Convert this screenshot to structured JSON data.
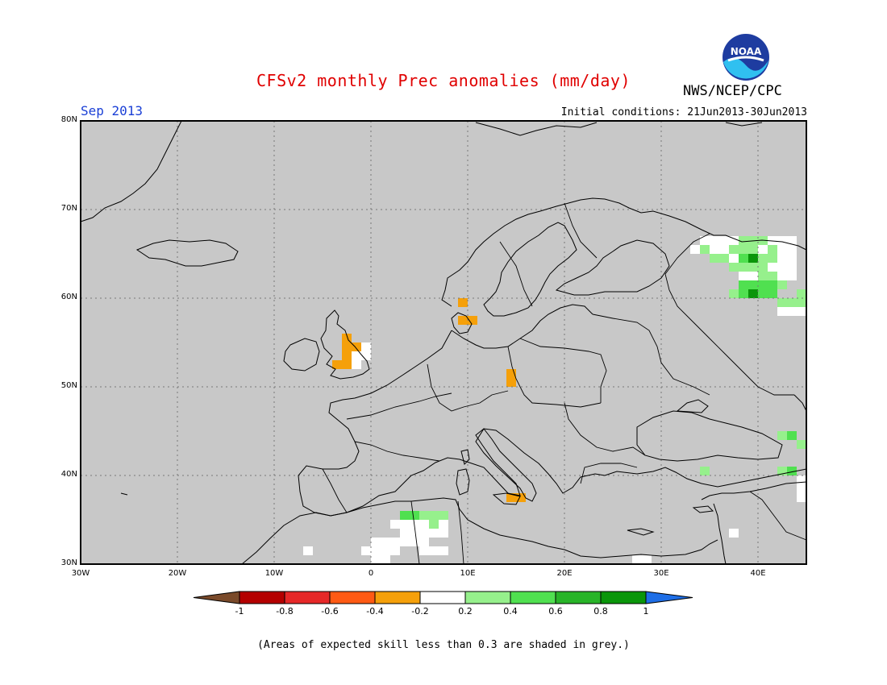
{
  "title": "CFSv2 monthly Prec anomalies (mm/day)",
  "month": "Sep 2013",
  "agency": "NWS/NCEP/CPC",
  "logo_text": "NOAA",
  "initial_conditions": "Initial conditions: 21Jun2013-30Jun2013",
  "footnote": "(Areas of expected skill less than 0.3 are shaded in grey.)",
  "colors": {
    "title": "#e00000",
    "month": "#1a3fd6",
    "ocean_grey": "#c8c8c8",
    "coast": "#000000",
    "grid": "#777777",
    "white": "#ffffff",
    "light_green": "#96f08c",
    "green": "#50e050",
    "mid_green": "#28b428",
    "dark_green": "#0a960a",
    "orange": "#f5a00a"
  },
  "map": {
    "lon_range": [
      -30,
      45
    ],
    "lat_range": [
      30,
      80
    ],
    "lat_labels": [
      "30N",
      "40N",
      "50N",
      "60N",
      "70N",
      "80N"
    ],
    "lat_values": [
      30,
      40,
      50,
      60,
      70,
      80
    ],
    "lon_labels": [
      "30W",
      "20W",
      "10W",
      "0",
      "10E",
      "20E",
      "30E",
      "40E"
    ],
    "lon_values": [
      -30,
      -20,
      -10,
      0,
      10,
      20,
      30,
      40
    ],
    "grid_lons": [
      -20,
      -10,
      0,
      10,
      20,
      30,
      40
    ],
    "grid_lats": [
      40,
      50,
      60,
      70
    ],
    "anomaly_cells": [
      {
        "lon": 34,
        "lat": 66,
        "cls": "white"
      },
      {
        "lon": 35,
        "lat": 66,
        "cls": "white"
      },
      {
        "lon": 36,
        "lat": 66,
        "cls": "white"
      },
      {
        "lon": 37,
        "lat": 66,
        "cls": "white"
      },
      {
        "lon": 38,
        "lat": 66,
        "cls": "light_green"
      },
      {
        "lon": 39,
        "lat": 66,
        "cls": "light_green"
      },
      {
        "lon": 40,
        "lat": 66,
        "cls": "light_green"
      },
      {
        "lon": 41,
        "lat": 66,
        "cls": "white"
      },
      {
        "lon": 42,
        "lat": 66,
        "cls": "white"
      },
      {
        "lon": 43,
        "lat": 66,
        "cls": "white"
      },
      {
        "lon": 33,
        "lat": 65,
        "cls": "white"
      },
      {
        "lon": 34,
        "lat": 65,
        "cls": "light_green"
      },
      {
        "lon": 35,
        "lat": 65,
        "cls": "white"
      },
      {
        "lon": 36,
        "lat": 65,
        "cls": "white"
      },
      {
        "lon": 37,
        "lat": 65,
        "cls": "light_green"
      },
      {
        "lon": 38,
        "lat": 65,
        "cls": "light_green"
      },
      {
        "lon": 39,
        "lat": 65,
        "cls": "light_green"
      },
      {
        "lon": 40,
        "lat": 65,
        "cls": "white"
      },
      {
        "lon": 41,
        "lat": 65,
        "cls": "light_green"
      },
      {
        "lon": 42,
        "lat": 65,
        "cls": "white"
      },
      {
        "lon": 43,
        "lat": 65,
        "cls": "white"
      },
      {
        "lon": 35,
        "lat": 64,
        "cls": "light_green"
      },
      {
        "lon": 36,
        "lat": 64,
        "cls": "light_green"
      },
      {
        "lon": 37,
        "lat": 64,
        "cls": "white"
      },
      {
        "lon": 38,
        "lat": 64,
        "cls": "green"
      },
      {
        "lon": 39,
        "lat": 64,
        "cls": "dark_green"
      },
      {
        "lon": 40,
        "lat": 64,
        "cls": "light_green"
      },
      {
        "lon": 41,
        "lat": 64,
        "cls": "light_green"
      },
      {
        "lon": 42,
        "lat": 64,
        "cls": "white"
      },
      {
        "lon": 43,
        "lat": 64,
        "cls": "white"
      },
      {
        "lon": 37,
        "lat": 63,
        "cls": "light_green"
      },
      {
        "lon": 38,
        "lat": 63,
        "cls": "light_green"
      },
      {
        "lon": 39,
        "lat": 63,
        "cls": "light_green"
      },
      {
        "lon": 40,
        "lat": 63,
        "cls": "light_green"
      },
      {
        "lon": 41,
        "lat": 63,
        "cls": "white"
      },
      {
        "lon": 42,
        "lat": 63,
        "cls": "white"
      },
      {
        "lon": 43,
        "lat": 63,
        "cls": "white"
      },
      {
        "lon": 38,
        "lat": 62,
        "cls": "white"
      },
      {
        "lon": 39,
        "lat": 62,
        "cls": "white"
      },
      {
        "lon": 40,
        "lat": 62,
        "cls": "light_green"
      },
      {
        "lon": 41,
        "lat": 62,
        "cls": "light_green"
      },
      {
        "lon": 42,
        "lat": 62,
        "cls": "white"
      },
      {
        "lon": 43,
        "lat": 62,
        "cls": "white"
      },
      {
        "lon": 38,
        "lat": 61,
        "cls": "green"
      },
      {
        "lon": 39,
        "lat": 61,
        "cls": "green"
      },
      {
        "lon": 40,
        "lat": 61,
        "cls": "green"
      },
      {
        "lon": 41,
        "lat": 61,
        "cls": "green"
      },
      {
        "lon": 42,
        "lat": 61,
        "cls": "light_green"
      },
      {
        "lon": 37,
        "lat": 60,
        "cls": "light_green"
      },
      {
        "lon": 38,
        "lat": 60,
        "cls": "green"
      },
      {
        "lon": 39,
        "lat": 60,
        "cls": "dark_green"
      },
      {
        "lon": 40,
        "lat": 60,
        "cls": "green"
      },
      {
        "lon": 41,
        "lat": 60,
        "cls": "green"
      },
      {
        "lon": 44,
        "lat": 60,
        "cls": "light_green"
      },
      {
        "lon": 42,
        "lat": 59,
        "cls": "light_green"
      },
      {
        "lon": 43,
        "lat": 59,
        "cls": "light_green"
      },
      {
        "lon": 44,
        "lat": 59,
        "cls": "light_green"
      },
      {
        "lon": 42,
        "lat": 58,
        "cls": "white"
      },
      {
        "lon": 43,
        "lat": 58,
        "cls": "white"
      },
      {
        "lon": 44,
        "lat": 58,
        "cls": "white"
      },
      {
        "lon": 9,
        "lat": 59,
        "cls": "orange"
      },
      {
        "lon": 9,
        "lat": 57,
        "cls": "orange"
      },
      {
        "lon": 10,
        "lat": 57,
        "cls": "orange"
      },
      {
        "lon": -3,
        "lat": 55,
        "cls": "orange"
      },
      {
        "lon": -3,
        "lat": 54,
        "cls": "orange"
      },
      {
        "lon": -2,
        "lat": 54,
        "cls": "orange"
      },
      {
        "lon": -1,
        "lat": 54,
        "cls": "white"
      },
      {
        "lon": -3,
        "lat": 53,
        "cls": "orange"
      },
      {
        "lon": -2,
        "lat": 53,
        "cls": "white"
      },
      {
        "lon": -1,
        "lat": 53,
        "cls": "white"
      },
      {
        "lon": -4,
        "lat": 52,
        "cls": "orange"
      },
      {
        "lon": -3,
        "lat": 52,
        "cls": "orange"
      },
      {
        "lon": -2,
        "lat": 52,
        "cls": "white"
      },
      {
        "lon": 14,
        "lat": 51,
        "cls": "orange"
      },
      {
        "lon": 14,
        "lat": 50,
        "cls": "orange"
      },
      {
        "lon": 14,
        "lat": 37,
        "cls": "orange"
      },
      {
        "lon": 15,
        "lat": 37,
        "cls": "orange"
      },
      {
        "lon": 42,
        "lat": 44,
        "cls": "light_green"
      },
      {
        "lon": 43,
        "lat": 44,
        "cls": "green"
      },
      {
        "lon": 44,
        "lat": 43,
        "cls": "light_green"
      },
      {
        "lon": 42,
        "lat": 40,
        "cls": "light_green"
      },
      {
        "lon": 43,
        "lat": 40,
        "cls": "green"
      },
      {
        "lon": 34,
        "lat": 40,
        "cls": "light_green"
      },
      {
        "lon": 44,
        "lat": 39,
        "cls": "white"
      },
      {
        "lon": 44,
        "lat": 38,
        "cls": "white"
      },
      {
        "lon": 44,
        "lat": 37,
        "cls": "white"
      },
      {
        "lon": 3,
        "lat": 35,
        "cls": "green"
      },
      {
        "lon": 4,
        "lat": 35,
        "cls": "green"
      },
      {
        "lon": 5,
        "lat": 35,
        "cls": "light_green"
      },
      {
        "lon": 6,
        "lat": 35,
        "cls": "light_green"
      },
      {
        "lon": 7,
        "lat": 35,
        "cls": "light_green"
      },
      {
        "lon": 2,
        "lat": 34,
        "cls": "white"
      },
      {
        "lon": 3,
        "lat": 34,
        "cls": "white"
      },
      {
        "lon": 4,
        "lat": 34,
        "cls": "white"
      },
      {
        "lon": 5,
        "lat": 34,
        "cls": "white"
      },
      {
        "lon": 6,
        "lat": 34,
        "cls": "light_green"
      },
      {
        "lon": 7,
        "lat": 34,
        "cls": "white"
      },
      {
        "lon": 3,
        "lat": 33,
        "cls": "white"
      },
      {
        "lon": 4,
        "lat": 33,
        "cls": "white"
      },
      {
        "lon": 5,
        "lat": 33,
        "cls": "white"
      },
      {
        "lon": 6,
        "lat": 33,
        "cls": "white"
      },
      {
        "lon": 7,
        "lat": 33,
        "cls": "white"
      },
      {
        "lon": 0,
        "lat": 32,
        "cls": "white"
      },
      {
        "lon": 1,
        "lat": 32,
        "cls": "white"
      },
      {
        "lon": 2,
        "lat": 32,
        "cls": "white"
      },
      {
        "lon": 3,
        "lat": 32,
        "cls": "white"
      },
      {
        "lon": 4,
        "lat": 32,
        "cls": "white"
      },
      {
        "lon": 5,
        "lat": 32,
        "cls": "white"
      },
      {
        "lon": -1,
        "lat": 31,
        "cls": "white"
      },
      {
        "lon": 0,
        "lat": 31,
        "cls": "white"
      },
      {
        "lon": 1,
        "lat": 31,
        "cls": "white"
      },
      {
        "lon": 2,
        "lat": 31,
        "cls": "white"
      },
      {
        "lon": 5,
        "lat": 31,
        "cls": "white"
      },
      {
        "lon": 6,
        "lat": 31,
        "cls": "white"
      },
      {
        "lon": 7,
        "lat": 31,
        "cls": "white"
      },
      {
        "lon": -7,
        "lat": 31,
        "cls": "white"
      },
      {
        "lon": 0,
        "lat": 30,
        "cls": "white"
      },
      {
        "lon": 1,
        "lat": 30,
        "cls": "white"
      },
      {
        "lon": 27,
        "lat": 30,
        "cls": "white"
      },
      {
        "lon": 28,
        "lat": 30,
        "cls": "white"
      },
      {
        "lon": 37,
        "lat": 33,
        "cls": "white"
      }
    ]
  },
  "legend": {
    "labels": [
      "-1",
      "-0.8",
      "-0.6",
      "-0.4",
      "-0.2",
      "0.2",
      "0.4",
      "0.6",
      "0.8",
      "1"
    ],
    "colors": [
      "#7a4a2a",
      "#b40000",
      "#e62828",
      "#ff5a14",
      "#f5a00a",
      "#ffffff",
      "#96f08c",
      "#50e050",
      "#28b428",
      "#0a960a",
      "#1e6ee6"
    ]
  }
}
